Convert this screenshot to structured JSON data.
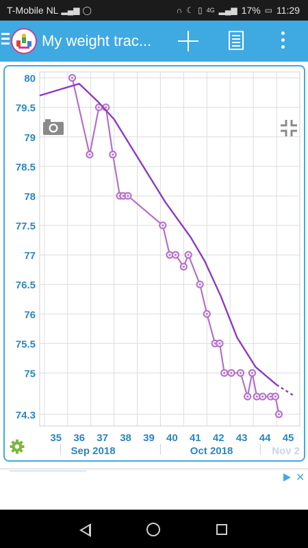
{
  "status_bar": {
    "carrier": "T-Mobile NL",
    "battery": "17%",
    "time": "11:29",
    "network_badge": "4G",
    "icons": [
      "signal-icon",
      "whatsapp-icon",
      "headphones-icon",
      "moon-icon",
      "vibrate-icon",
      "battery-icon"
    ]
  },
  "app_bar": {
    "title": "My weight trac...",
    "logo_icon": "app-logo-icon",
    "add_icon": "plus-icon",
    "list_icon": "document-icon",
    "menu_icon": "overflow-dots-icon",
    "nav_icon": "hamburger-icon",
    "color": "#3fa9e2"
  },
  "chart_overlay": {
    "camera_icon": "camera-icon",
    "collapse_icon": "collapse-icon",
    "settings_icon": "gear-icon"
  },
  "chart_data": {
    "type": "line",
    "ylim": [
      74.1,
      80.1
    ],
    "y_ticks": [
      {
        "label": "80",
        "value": 80
      },
      {
        "label": "79.5",
        "value": 79.5
      },
      {
        "label": "79",
        "value": 79
      },
      {
        "label": "78.5",
        "value": 78.5
      },
      {
        "label": "78",
        "value": 78
      },
      {
        "label": "77.5",
        "value": 77.5
      },
      {
        "label": "77",
        "value": 77
      },
      {
        "label": "76.5",
        "value": 76.5
      },
      {
        "label": "76",
        "value": 76
      },
      {
        "label": "75.5",
        "value": 75.5
      },
      {
        "label": "75",
        "value": 75
      },
      {
        "label": "74.3",
        "value": 74.3
      }
    ],
    "xlim": [
      34.3,
      45.5
    ],
    "x_ticks": [
      "35",
      "36",
      "37",
      "38",
      "39",
      "40",
      "41",
      "42",
      "43",
      "44",
      "45"
    ],
    "x_tick_values": [
      35,
      36,
      37,
      38,
      39,
      40,
      41,
      42,
      43,
      44,
      45
    ],
    "month_labels": [
      {
        "label": "Sep 2018",
        "x": 36.6
      },
      {
        "label": "Oct 2018",
        "x": 41.7
      },
      {
        "label": "Nov 2",
        "x": 44.9
      }
    ],
    "month_separators": [
      35.2,
      39.5,
      43.8
    ],
    "grid": true,
    "series": [
      {
        "role": "measurements",
        "color": "#b46fc8",
        "points": [
          [
            35.7,
            80.0
          ],
          [
            36.45,
            78.7
          ],
          [
            36.85,
            79.5
          ],
          [
            37.15,
            79.5
          ],
          [
            37.45,
            78.7
          ],
          [
            37.75,
            78.0
          ],
          [
            37.9,
            78.0
          ],
          [
            38.1,
            78.0
          ],
          [
            39.6,
            77.5
          ],
          [
            39.9,
            77.0
          ],
          [
            40.15,
            77.0
          ],
          [
            40.5,
            76.8
          ],
          [
            40.7,
            77.0
          ],
          [
            41.2,
            76.5
          ],
          [
            41.5,
            76.0
          ],
          [
            41.85,
            75.5
          ],
          [
            42.05,
            75.5
          ],
          [
            42.25,
            75.0
          ],
          [
            42.55,
            75.0
          ],
          [
            42.95,
            75.0
          ],
          [
            43.25,
            74.6
          ],
          [
            43.45,
            75.0
          ],
          [
            43.65,
            74.6
          ],
          [
            43.9,
            74.6
          ],
          [
            44.25,
            74.6
          ],
          [
            44.45,
            74.6
          ],
          [
            44.6,
            74.3
          ]
        ]
      },
      {
        "role": "trend",
        "color": "#8c39c2",
        "points": [
          [
            34.3,
            79.7
          ],
          [
            36.0,
            79.9
          ],
          [
            36.8,
            79.6
          ],
          [
            37.5,
            79.3
          ],
          [
            38.6,
            78.6
          ],
          [
            39.7,
            77.9
          ],
          [
            40.8,
            77.3
          ],
          [
            41.4,
            76.9
          ],
          [
            42.1,
            76.3
          ],
          [
            42.8,
            75.6
          ],
          [
            43.6,
            75.1
          ],
          [
            44.5,
            74.8
          ]
        ],
        "projection": [
          [
            44.5,
            74.8
          ],
          [
            45.3,
            74.6
          ]
        ]
      }
    ]
  }
}
